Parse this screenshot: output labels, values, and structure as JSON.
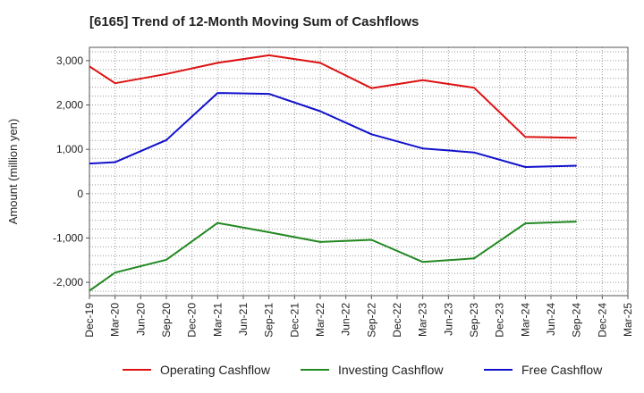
{
  "chart_data": {
    "type": "line",
    "title": "[6165]  Trend of 12-Month Moving Sum of Cashflows",
    "xlabel": "",
    "ylabel": "Amount (million yen)",
    "ylim": [
      -2300,
      3300
    ],
    "yticks": [
      -2000,
      -1000,
      0,
      1000,
      2000,
      3000
    ],
    "ytick_labels": [
      "-2,000",
      "-1,000",
      "0",
      "1,000",
      "2,000",
      "3,000"
    ],
    "grid": true,
    "legend_position": "bottom",
    "categories": [
      "Dec-19",
      "Mar-20",
      "Jun-20",
      "Sep-20",
      "Dec-20",
      "Mar-21",
      "Jun-21",
      "Sep-21",
      "Dec-21",
      "Mar-22",
      "Jun-22",
      "Sep-22",
      "Dec-22",
      "Mar-23",
      "Jun-23",
      "Sep-23",
      "Dec-23",
      "Mar-24",
      "Jun-24",
      "Sep-24",
      "Dec-24",
      "Mar-25"
    ],
    "series": [
      {
        "name": "Operating Cashflow",
        "color": "#dd1111",
        "values": [
          2870,
          2490,
          null,
          2700,
          null,
          2950,
          null,
          3120,
          null,
          2950,
          null,
          2380,
          null,
          2560,
          null,
          2390,
          null,
          1280,
          null,
          1260,
          null,
          null
        ]
      },
      {
        "name": "Investing Cashflow",
        "color": "#228822",
        "values": [
          -2190,
          -1780,
          null,
          -1490,
          null,
          -660,
          null,
          -870,
          null,
          -1090,
          null,
          -1040,
          null,
          -1540,
          null,
          -1460,
          null,
          -670,
          null,
          -630,
          null,
          null
        ]
      },
      {
        "name": "Free Cashflow",
        "color": "#1111cc",
        "values": [
          680,
          710,
          null,
          1210,
          null,
          2270,
          null,
          2250,
          null,
          1860,
          null,
          1340,
          null,
          1020,
          null,
          930,
          null,
          600,
          null,
          630,
          null,
          null
        ]
      }
    ]
  }
}
